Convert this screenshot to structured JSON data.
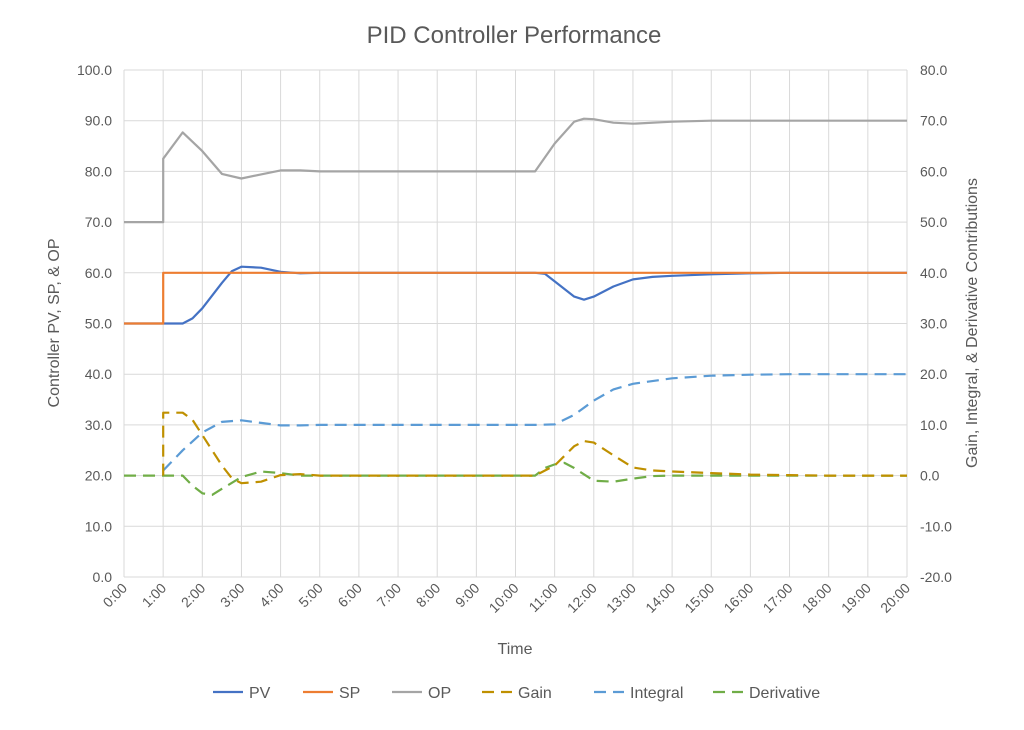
{
  "chart_data": {
    "type": "line",
    "title": "PID Controller Performance",
    "xlabel": "Time",
    "ylabel": "Controller PV, SP, & OP",
    "y2label": "Gain, Integral, & Derivative Contributions",
    "x_ticks": [
      "0:00",
      "1:00",
      "2:00",
      "3:00",
      "4:00",
      "5:00",
      "6:00",
      "7:00",
      "8:00",
      "9:00",
      "10:00",
      "11:00",
      "12:00",
      "13:00",
      "14:00",
      "15:00",
      "16:00",
      "17:00",
      "18:00",
      "19:00",
      "20:00"
    ],
    "xlim": [
      "0:00",
      "20:00"
    ],
    "ylim": [
      0,
      100
    ],
    "y_ticks": [
      "0.0",
      "10.0",
      "20.0",
      "30.0",
      "40.0",
      "50.0",
      "60.0",
      "70.0",
      "80.0",
      "90.0",
      "100.0"
    ],
    "y2lim": [
      -20,
      80
    ],
    "y2_ticks": [
      "-20.0",
      "-10.0",
      "0.0",
      "10.0",
      "20.0",
      "30.0",
      "40.0",
      "50.0",
      "60.0",
      "70.0",
      "80.0"
    ],
    "grid": true,
    "legend": "bottom",
    "series": [
      {
        "name": "PV",
        "axis": "left",
        "color": "#4472C4",
        "dash": false,
        "points": [
          [
            "0:00",
            50
          ],
          [
            "1:00",
            50
          ],
          [
            "1:30",
            50
          ],
          [
            "1:45",
            51
          ],
          [
            "2:00",
            53
          ],
          [
            "2:30",
            58
          ],
          [
            "2:45",
            60.3
          ],
          [
            "3:00",
            61.2
          ],
          [
            "3:30",
            61
          ],
          [
            "4:00",
            60.2
          ],
          [
            "4:30",
            59.9
          ],
          [
            "5:00",
            60
          ],
          [
            "10:30",
            60
          ],
          [
            "10:45",
            59.8
          ],
          [
            "11:00",
            58.3
          ],
          [
            "11:30",
            55.3
          ],
          [
            "11:45",
            54.7
          ],
          [
            "12:00",
            55.3
          ],
          [
            "12:30",
            57.3
          ],
          [
            "13:00",
            58.7
          ],
          [
            "13:30",
            59.2
          ],
          [
            "14:00",
            59.4
          ],
          [
            "15:00",
            59.7
          ],
          [
            "16:00",
            59.9
          ],
          [
            "17:00",
            60
          ],
          [
            "20:00",
            60
          ]
        ]
      },
      {
        "name": "SP",
        "axis": "left",
        "color": "#ED7D31",
        "dash": false,
        "points": [
          [
            "0:00",
            50
          ],
          [
            "1:00",
            50
          ],
          [
            "1:00",
            60
          ],
          [
            "20:00",
            60
          ]
        ]
      },
      {
        "name": "OP",
        "axis": "left",
        "color": "#A5A5A5",
        "dash": false,
        "points": [
          [
            "0:00",
            70
          ],
          [
            "1:00",
            70
          ],
          [
            "1:00",
            82.5
          ],
          [
            "1:30",
            87.7
          ],
          [
            "2:00",
            84
          ],
          [
            "2:30",
            79.5
          ],
          [
            "3:00",
            78.6
          ],
          [
            "3:30",
            79.4
          ],
          [
            "4:00",
            80.2
          ],
          [
            "4:30",
            80.2
          ],
          [
            "5:00",
            80
          ],
          [
            "10:30",
            80
          ],
          [
            "11:00",
            85.5
          ],
          [
            "11:30",
            89.8
          ],
          [
            "11:45",
            90.4
          ],
          [
            "12:00",
            90.3
          ],
          [
            "12:30",
            89.6
          ],
          [
            "13:00",
            89.4
          ],
          [
            "14:00",
            89.8
          ],
          [
            "15:00",
            90
          ],
          [
            "20:00",
            90
          ]
        ]
      },
      {
        "name": "Gain",
        "axis": "right",
        "color": "#BF9000",
        "dash": true,
        "points": [
          [
            "1:00",
            0
          ],
          [
            "1:00",
            12.4
          ],
          [
            "1:30",
            12.4
          ],
          [
            "1:45",
            11
          ],
          [
            "2:00",
            8
          ],
          [
            "2:30",
            2
          ],
          [
            "2:45",
            -0.5
          ],
          [
            "3:00",
            -1.5
          ],
          [
            "3:30",
            -1.2
          ],
          [
            "4:00",
            0.1
          ],
          [
            "4:30",
            0.3
          ],
          [
            "5:00",
            0
          ],
          [
            "10:30",
            0
          ],
          [
            "11:00",
            2
          ],
          [
            "11:30",
            5.8
          ],
          [
            "11:45",
            6.8
          ],
          [
            "12:00",
            6.5
          ],
          [
            "12:30",
            4
          ],
          [
            "13:00",
            1.6
          ],
          [
            "13:30",
            1
          ],
          [
            "14:00",
            0.8
          ],
          [
            "15:00",
            0.5
          ],
          [
            "16:00",
            0.2
          ],
          [
            "17:00",
            0.1
          ],
          [
            "18:00",
            0
          ],
          [
            "20:00",
            0
          ]
        ]
      },
      {
        "name": "Integral",
        "axis": "right",
        "color": "#5B9BD5",
        "dash": true,
        "points": [
          [
            "1:00",
            1
          ],
          [
            "1:30",
            5
          ],
          [
            "2:00",
            8.5
          ],
          [
            "2:30",
            10.6
          ],
          [
            "3:00",
            10.9
          ],
          [
            "3:30",
            10.4
          ],
          [
            "4:00",
            9.9
          ],
          [
            "4:30",
            9.9
          ],
          [
            "5:00",
            10
          ],
          [
            "10:30",
            10
          ],
          [
            "11:00",
            10.1
          ],
          [
            "11:30",
            12
          ],
          [
            "12:00",
            14.8
          ],
          [
            "12:30",
            17
          ],
          [
            "13:00",
            18.1
          ],
          [
            "14:00",
            19.2
          ],
          [
            "15:00",
            19.7
          ],
          [
            "16:00",
            19.9
          ],
          [
            "17:00",
            20
          ],
          [
            "20:00",
            20
          ]
        ]
      },
      {
        "name": "Derivative",
        "axis": "right",
        "color": "#70AD47",
        "dash": true,
        "points": [
          [
            "0:00",
            0
          ],
          [
            "1:30",
            0
          ],
          [
            "1:45",
            -2
          ],
          [
            "2:00",
            -3.5
          ],
          [
            "2:15",
            -3.8
          ],
          [
            "2:30",
            -2.6
          ],
          [
            "3:00",
            -0.3
          ],
          [
            "3:30",
            0.8
          ],
          [
            "4:00",
            0.5
          ],
          [
            "4:30",
            0
          ],
          [
            "10:30",
            0
          ],
          [
            "10:45",
            1.5
          ],
          [
            "11:00",
            2.2
          ],
          [
            "11:15",
            2.5
          ],
          [
            "11:30",
            1.5
          ],
          [
            "12:00",
            -1
          ],
          [
            "12:30",
            -1.2
          ],
          [
            "13:00",
            -0.6
          ],
          [
            "13:30",
            -0.1
          ],
          [
            "14:00",
            0
          ],
          [
            "20:00",
            0
          ]
        ]
      }
    ]
  }
}
